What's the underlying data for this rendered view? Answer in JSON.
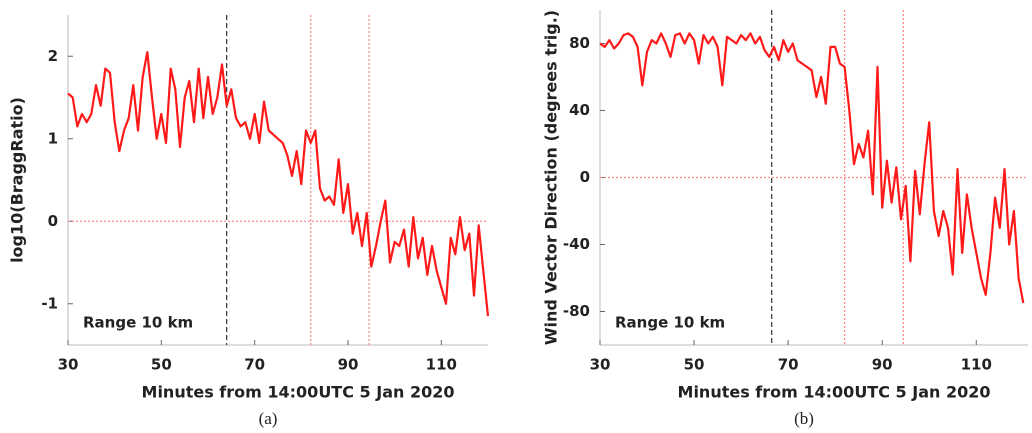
{
  "chart_data": [
    {
      "type": "line",
      "x_label": "Minutes from 14:00UTC 5 Jan 2020",
      "y_label": "log10(BraggRatio)",
      "annotation": "Range 10 km",
      "caption": "(a)",
      "xlim": [
        30,
        120
      ],
      "ylim": [
        -1.5,
        2.5
      ],
      "xticks": [
        30,
        50,
        70,
        90,
        110
      ],
      "yticks": [
        -1,
        0,
        1,
        2
      ],
      "reference_lines": [
        {
          "x": 64,
          "color": "#333333"
        },
        {
          "x": 82,
          "color": "#ff8888"
        },
        {
          "x": 94.5,
          "color": "#ff8888"
        },
        {
          "y": 0,
          "color": "#ff8888"
        }
      ],
      "x": [
        30,
        31,
        32,
        33,
        34,
        35,
        36,
        37,
        38,
        39,
        40,
        41,
        42,
        43,
        44,
        45,
        46,
        47,
        48,
        49,
        50,
        51,
        52,
        53,
        54,
        55,
        56,
        57,
        58,
        59,
        60,
        61,
        62,
        63,
        64,
        65,
        66,
        67,
        68,
        69,
        70,
        71,
        72,
        73,
        74,
        75,
        76,
        77,
        78,
        79,
        80,
        81,
        82,
        83,
        84,
        85,
        86,
        87,
        88,
        89,
        90,
        91,
        92,
        93,
        94,
        95,
        96,
        97,
        98,
        99,
        100,
        101,
        102,
        103,
        104,
        105,
        106,
        107,
        108,
        109,
        110,
        111,
        112,
        113,
        114,
        115,
        116,
        117,
        118,
        119,
        120
      ],
      "series": [
        {
          "color": "#ff1a1a",
          "values": [
            1.55,
            1.5,
            1.15,
            1.3,
            1.2,
            1.3,
            1.65,
            1.4,
            1.85,
            1.8,
            1.2,
            0.85,
            1.1,
            1.25,
            1.65,
            1.1,
            1.75,
            2.05,
            1.5,
            1.0,
            1.3,
            0.95,
            1.85,
            1.6,
            0.9,
            1.5,
            1.7,
            1.2,
            1.85,
            1.25,
            1.75,
            1.3,
            1.5,
            1.9,
            1.4,
            1.6,
            1.25,
            1.15,
            1.2,
            1.0,
            1.3,
            0.95,
            1.45,
            1.1,
            1.05,
            1.0,
            0.95,
            0.8,
            0.55,
            0.85,
            0.45,
            1.1,
            0.95,
            1.1,
            0.4,
            0.25,
            0.3,
            0.2,
            0.75,
            0.1,
            0.45,
            -0.15,
            0.1,
            -0.3,
            0.1,
            -0.55,
            -0.3,
            0.0,
            0.25,
            -0.5,
            -0.25,
            -0.3,
            -0.1,
            -0.55,
            0.05,
            -0.45,
            -0.2,
            -0.65,
            -0.3,
            -0.6,
            -0.8,
            -1.0,
            -0.2,
            -0.4,
            0.05,
            -0.35,
            -0.15,
            -0.9,
            -0.05,
            -0.6,
            -1.15
          ]
        }
      ]
    },
    {
      "type": "line",
      "x_label": "Minutes from 14:00UTC 5 Jan 2020",
      "y_label": "Wind Vector Direction (degrees trig.)",
      "annotation": "Range 10 km",
      "caption": "(b)",
      "xlim": [
        30,
        121
      ],
      "ylim": [
        -100,
        100
      ],
      "xticks": [
        30,
        50,
        70,
        90,
        110
      ],
      "yticks": [
        -80,
        -40,
        0,
        40,
        80
      ],
      "reference_lines": [
        {
          "x": 66.5,
          "color": "#333333"
        },
        {
          "x": 82,
          "color": "#ff8888"
        },
        {
          "x": 94.5,
          "color": "#ff8888"
        },
        {
          "y": 0,
          "color": "#ff8888"
        }
      ],
      "x": [
        30,
        31,
        32,
        33,
        34,
        35,
        36,
        37,
        38,
        39,
        40,
        41,
        42,
        43,
        44,
        45,
        46,
        47,
        48,
        49,
        50,
        51,
        52,
        53,
        54,
        55,
        56,
        57,
        58,
        59,
        60,
        61,
        62,
        63,
        64,
        65,
        66,
        67,
        68,
        69,
        70,
        71,
        72,
        73,
        74,
        75,
        76,
        77,
        78,
        79,
        80,
        81,
        82,
        83,
        84,
        85,
        86,
        87,
        88,
        89,
        90,
        91,
        92,
        93,
        94,
        95,
        96,
        97,
        98,
        99,
        100,
        101,
        102,
        103,
        104,
        105,
        106,
        107,
        108,
        109,
        110,
        111,
        112,
        113,
        114,
        115,
        116,
        117,
        118,
        119,
        120
      ],
      "series": [
        {
          "color": "#ff1a1a",
          "values": [
            80,
            78,
            82,
            77,
            80,
            85,
            86,
            84,
            78,
            55,
            75,
            82,
            80,
            86,
            80,
            72,
            85,
            86,
            80,
            86,
            82,
            68,
            85,
            80,
            84,
            78,
            55,
            84,
            82,
            80,
            85,
            82,
            86,
            80,
            84,
            76,
            72,
            78,
            70,
            82,
            75,
            80,
            70,
            68,
            66,
            64,
            48,
            60,
            44,
            78,
            78,
            68,
            66,
            40,
            8,
            20,
            12,
            28,
            -10,
            66,
            -18,
            10,
            -15,
            6,
            -25,
            -5,
            -50,
            4,
            -22,
            8,
            33,
            -20,
            -35,
            -20,
            -30,
            -58,
            5,
            -45,
            -10,
            -30,
            -45,
            -60,
            -70,
            -45,
            -12,
            -30,
            5,
            -40,
            -20,
            -60,
            -75
          ]
        }
      ]
    }
  ]
}
